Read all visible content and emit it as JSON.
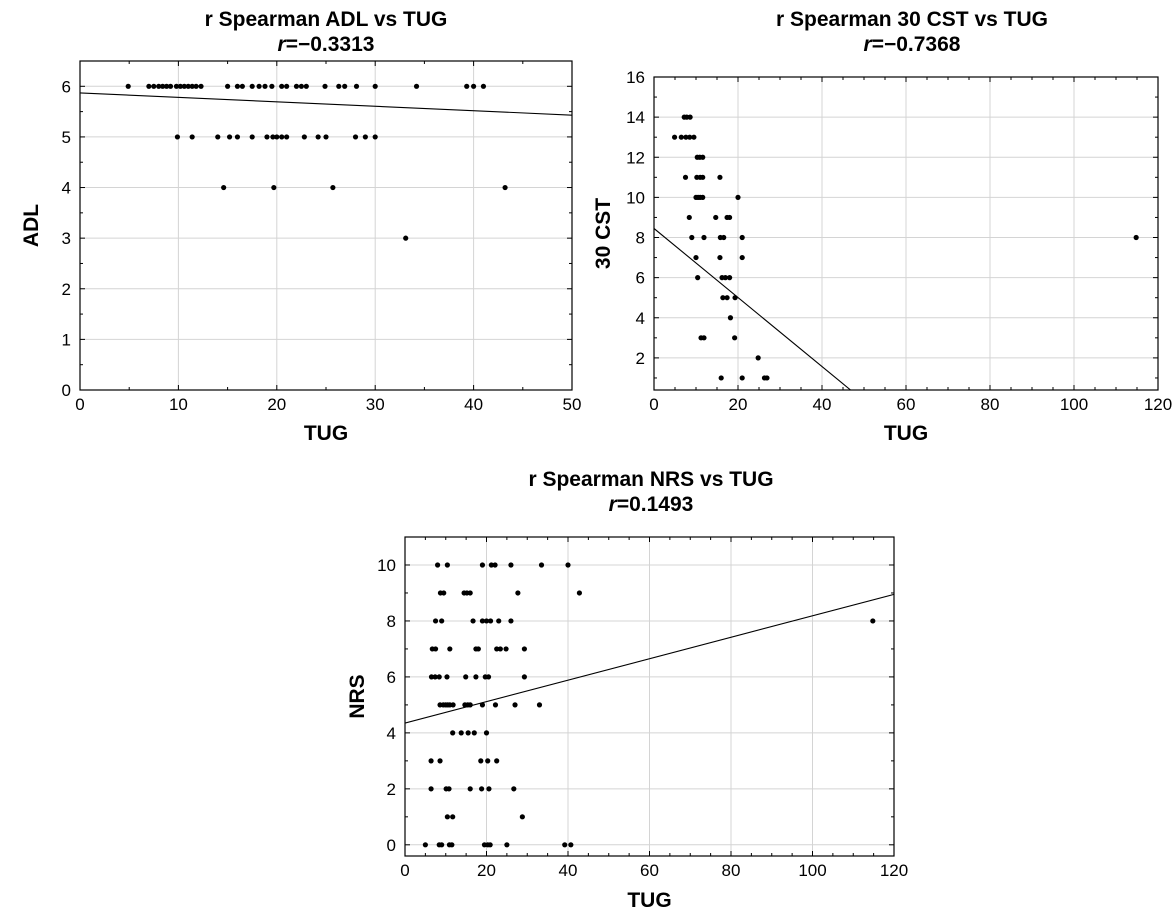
{
  "chart_data": [
    {
      "type": "scatter",
      "title": "r Spearman ADL vs TUG",
      "r_prefix": "r",
      "r_value": "=−0.3313",
      "xlabel": "TUG",
      "ylabel": "ADL",
      "xlim": [
        0,
        50
      ],
      "ylim": [
        0,
        6.5
      ],
      "xticks": [
        0,
        10,
        20,
        30,
        40,
        50
      ],
      "yticks": [
        0,
        1,
        2,
        3,
        4,
        5,
        6
      ],
      "grid": true,
      "fit_line": [
        [
          0,
          5.87
        ],
        [
          50,
          5.43
        ]
      ],
      "points": [
        [
          4.9,
          6
        ],
        [
          7,
          6
        ],
        [
          7.5,
          6
        ],
        [
          8,
          6
        ],
        [
          8.4,
          6
        ],
        [
          8.8,
          6
        ],
        [
          9.2,
          6
        ],
        [
          9.8,
          6
        ],
        [
          10.2,
          6
        ],
        [
          10.6,
          6
        ],
        [
          11,
          6
        ],
        [
          11.4,
          6
        ],
        [
          11.8,
          6
        ],
        [
          12.3,
          6
        ],
        [
          15,
          6
        ],
        [
          16,
          6
        ],
        [
          16.5,
          6
        ],
        [
          17.5,
          6
        ],
        [
          18.2,
          6
        ],
        [
          18.8,
          6
        ],
        [
          19.5,
          6
        ],
        [
          20.5,
          6
        ],
        [
          21,
          6
        ],
        [
          22,
          6
        ],
        [
          22.5,
          6
        ],
        [
          23,
          6
        ],
        [
          24.9,
          6
        ],
        [
          26.3,
          6
        ],
        [
          26.9,
          6
        ],
        [
          28.1,
          6
        ],
        [
          30,
          6
        ],
        [
          34.2,
          6
        ],
        [
          39.3,
          6
        ],
        [
          40,
          6
        ],
        [
          41,
          6
        ],
        [
          9.9,
          5
        ],
        [
          11.4,
          5
        ],
        [
          14,
          5
        ],
        [
          15.2,
          5
        ],
        [
          16,
          5
        ],
        [
          17.5,
          5
        ],
        [
          19,
          5
        ],
        [
          19.6,
          5
        ],
        [
          20,
          5
        ],
        [
          20.5,
          5
        ],
        [
          21,
          5
        ],
        [
          22.8,
          5
        ],
        [
          24.2,
          5
        ],
        [
          25,
          5
        ],
        [
          28,
          5
        ],
        [
          29,
          5
        ],
        [
          30,
          5
        ],
        [
          14.6,
          4
        ],
        [
          19.7,
          4
        ],
        [
          25.7,
          4
        ],
        [
          43.2,
          4
        ],
        [
          33.1,
          3
        ]
      ]
    },
    {
      "type": "scatter",
      "title": "r Spearman 30 CST vs TUG",
      "r_prefix": "r",
      "r_value": "=−0.7368",
      "xlabel": "TUG",
      "ylabel": "30 CST",
      "xlim": [
        0,
        120
      ],
      "ylim": [
        0.4,
        16
      ],
      "xticks": [
        0,
        20,
        40,
        60,
        80,
        100,
        120
      ],
      "yticks": [
        2,
        4,
        6,
        8,
        10,
        12,
        14,
        16
      ],
      "grid": true,
      "fit_line": [
        [
          0,
          8.45
        ],
        [
          46.8,
          0.4
        ]
      ],
      "points": [
        [
          4.9,
          13
        ],
        [
          6.5,
          13
        ],
        [
          7.2,
          14
        ],
        [
          7.8,
          14
        ],
        [
          8.6,
          14
        ],
        [
          7.6,
          13
        ],
        [
          8.5,
          13
        ],
        [
          9.5,
          13
        ],
        [
          10.3,
          12
        ],
        [
          10.9,
          12
        ],
        [
          11.6,
          12
        ],
        [
          10.2,
          11
        ],
        [
          11,
          11
        ],
        [
          11.6,
          11
        ],
        [
          15.7,
          11
        ],
        [
          7.5,
          11
        ],
        [
          10,
          10
        ],
        [
          10.5,
          10
        ],
        [
          11,
          10
        ],
        [
          11.6,
          10
        ],
        [
          20,
          10
        ],
        [
          8.4,
          9
        ],
        [
          14.7,
          9
        ],
        [
          17.4,
          9
        ],
        [
          18,
          9
        ],
        [
          9,
          8
        ],
        [
          11.9,
          8
        ],
        [
          15.8,
          8
        ],
        [
          16.6,
          8
        ],
        [
          21,
          8
        ],
        [
          114.8,
          8
        ],
        [
          10,
          7
        ],
        [
          15.7,
          7
        ],
        [
          21,
          7
        ],
        [
          10.4,
          6
        ],
        [
          16.2,
          6
        ],
        [
          17,
          6
        ],
        [
          18,
          6
        ],
        [
          16.4,
          5
        ],
        [
          17.4,
          5
        ],
        [
          19.3,
          5
        ],
        [
          18.2,
          4
        ],
        [
          11.2,
          3
        ],
        [
          11.9,
          3
        ],
        [
          19.2,
          3
        ],
        [
          24.8,
          2
        ],
        [
          16,
          1
        ],
        [
          21,
          1
        ],
        [
          26.3,
          1
        ],
        [
          26.9,
          1
        ]
      ]
    },
    {
      "type": "scatter",
      "title": "r Spearman NRS vs TUG",
      "r_prefix": "r",
      "r_value": "=0.1493",
      "xlabel": "TUG",
      "ylabel": "NRS",
      "xlim": [
        0,
        120
      ],
      "ylim": [
        -0.4,
        11
      ],
      "xticks": [
        0,
        20,
        40,
        60,
        80,
        100,
        120
      ],
      "yticks": [
        0,
        2,
        4,
        6,
        8,
        10
      ],
      "grid": true,
      "fit_line": [
        [
          0,
          4.35
        ],
        [
          120,
          8.95
        ]
      ],
      "points": [
        [
          8,
          10
        ],
        [
          10.4,
          10
        ],
        [
          19,
          10
        ],
        [
          21.2,
          10
        ],
        [
          22.1,
          10
        ],
        [
          26,
          10
        ],
        [
          33.5,
          10
        ],
        [
          40,
          10
        ],
        [
          8.7,
          9
        ],
        [
          9.5,
          9
        ],
        [
          14.5,
          9
        ],
        [
          15.2,
          9
        ],
        [
          16,
          9
        ],
        [
          27.7,
          9
        ],
        [
          42.8,
          9
        ],
        [
          7.5,
          8
        ],
        [
          9,
          8
        ],
        [
          16.7,
          8
        ],
        [
          19,
          8
        ],
        [
          20,
          8
        ],
        [
          21,
          8
        ],
        [
          23,
          8
        ],
        [
          26,
          8
        ],
        [
          114.8,
          8
        ],
        [
          6.7,
          7
        ],
        [
          7.5,
          7
        ],
        [
          11,
          7
        ],
        [
          17.4,
          7
        ],
        [
          18,
          7
        ],
        [
          22.5,
          7
        ],
        [
          23.4,
          7
        ],
        [
          24.8,
          7
        ],
        [
          29.3,
          7
        ],
        [
          6.5,
          6
        ],
        [
          7.4,
          6
        ],
        [
          8.4,
          6
        ],
        [
          10.3,
          6
        ],
        [
          14.9,
          6
        ],
        [
          17.4,
          6
        ],
        [
          19.7,
          6
        ],
        [
          20.5,
          6
        ],
        [
          29.3,
          6
        ],
        [
          8.6,
          5
        ],
        [
          9.4,
          5
        ],
        [
          10,
          5
        ],
        [
          10.5,
          5
        ],
        [
          11,
          5
        ],
        [
          11.8,
          5
        ],
        [
          14.7,
          5
        ],
        [
          15.4,
          5
        ],
        [
          16,
          5
        ],
        [
          19,
          5
        ],
        [
          22.2,
          5
        ],
        [
          27,
          5
        ],
        [
          33,
          5
        ],
        [
          11.7,
          4
        ],
        [
          13.8,
          4
        ],
        [
          15.5,
          4
        ],
        [
          17,
          4
        ],
        [
          20,
          4
        ],
        [
          6.4,
          3
        ],
        [
          8.6,
          3
        ],
        [
          18.6,
          3
        ],
        [
          20.3,
          3
        ],
        [
          22.5,
          3
        ],
        [
          6.4,
          2
        ],
        [
          10.1,
          2
        ],
        [
          10.8,
          2
        ],
        [
          16,
          2
        ],
        [
          18.8,
          2
        ],
        [
          20.6,
          2
        ],
        [
          26.7,
          2
        ],
        [
          10.4,
          1
        ],
        [
          11.7,
          1
        ],
        [
          28.8,
          1
        ],
        [
          5,
          0
        ],
        [
          8.4,
          0
        ],
        [
          9,
          0
        ],
        [
          10.9,
          0
        ],
        [
          11.5,
          0
        ],
        [
          19.5,
          0
        ],
        [
          20.3,
          0
        ],
        [
          20.9,
          0
        ],
        [
          25,
          0
        ],
        [
          39.2,
          0
        ],
        [
          40.7,
          0
        ]
      ]
    }
  ]
}
